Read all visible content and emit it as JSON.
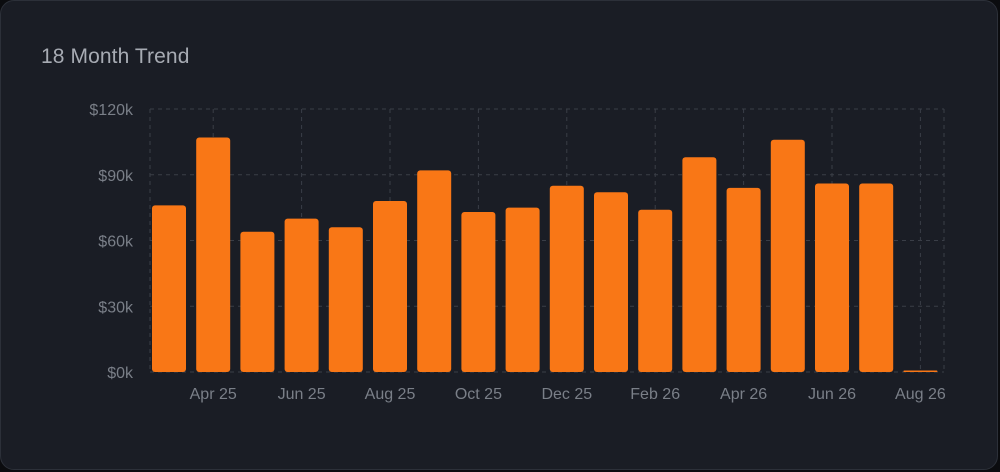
{
  "card": {
    "title": "18 Month Trend"
  },
  "colors": {
    "bar": "#f97716",
    "grid": "#3a3e47",
    "tick_text": "#7a7f88",
    "background": "#1a1d25"
  },
  "chart_data": {
    "type": "bar",
    "title": "18 Month Trend",
    "xlabel": "",
    "ylabel": "",
    "ylim": [
      0,
      120000
    ],
    "grid": true,
    "y_ticks": [
      "$0k",
      "$30k",
      "$60k",
      "$90k",
      "$120k"
    ],
    "y_tick_values": [
      0,
      30000,
      60000,
      90000,
      120000
    ],
    "x_tick_labels": [
      "Apr 25",
      "Jun 25",
      "Aug 25",
      "Oct 25",
      "Dec 25",
      "Feb 26",
      "Apr 26",
      "Jun 26",
      "Aug 26"
    ],
    "categories": [
      "Mar 25",
      "Apr 25",
      "May 25",
      "Jun 25",
      "Jul 25",
      "Aug 25",
      "Sep 25",
      "Oct 25",
      "Nov 25",
      "Dec 25",
      "Jan 26",
      "Feb 26",
      "Mar 26",
      "Apr 26",
      "May 26",
      "Jun 26",
      "Jul 26",
      "Aug 26"
    ],
    "values": [
      76000,
      107000,
      64000,
      70000,
      66000,
      78000,
      92000,
      73000,
      75000,
      85000,
      82000,
      74000,
      98000,
      84000,
      106000,
      86000,
      86000,
      500
    ]
  }
}
